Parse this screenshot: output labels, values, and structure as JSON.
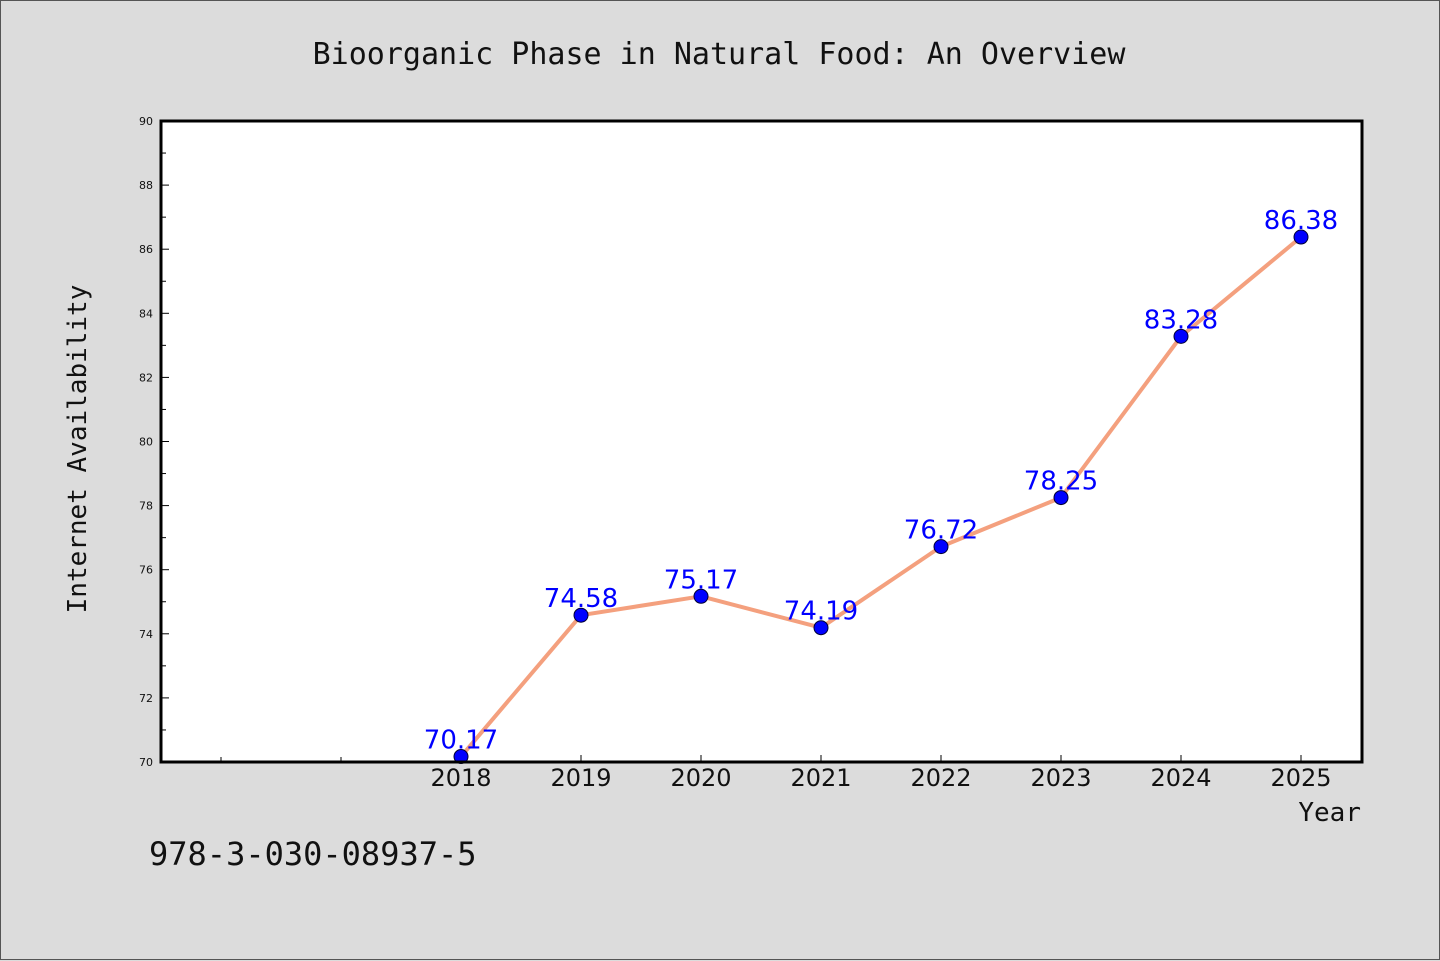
{
  "chart_data": {
    "type": "line",
    "title": "Bioorganic Phase in Natural Food: An Overview",
    "xlabel": "Year",
    "ylabel": "Internet Availability",
    "categories": [
      "2018",
      "2019",
      "2020",
      "2021",
      "2022",
      "2023",
      "2024",
      "2025"
    ],
    "values": [
      70.17,
      74.58,
      75.17,
      74.19,
      76.72,
      78.25,
      83.28,
      86.38
    ],
    "value_labels": [
      "70.17",
      "74.58",
      "75.17",
      "74.19",
      "76.72",
      "78.25",
      "83.28",
      "86.38"
    ],
    "ylim": [
      70,
      90
    ],
    "yticks": [
      70,
      72,
      74,
      76,
      78,
      80,
      82,
      84,
      86,
      88,
      90
    ],
    "ytick_labels": [
      "70",
      "72",
      "74",
      "76",
      "78",
      "80",
      "82",
      "84",
      "86",
      "88",
      "90"
    ],
    "grid": false,
    "line_color": "#f4a07e",
    "marker_color": "#0000ff",
    "label_color": "#0000ff",
    "background_color": "#dcdcdc",
    "plot_background_color": "#ffffff"
  },
  "footer": {
    "text": "978-3-030-08937-5"
  }
}
